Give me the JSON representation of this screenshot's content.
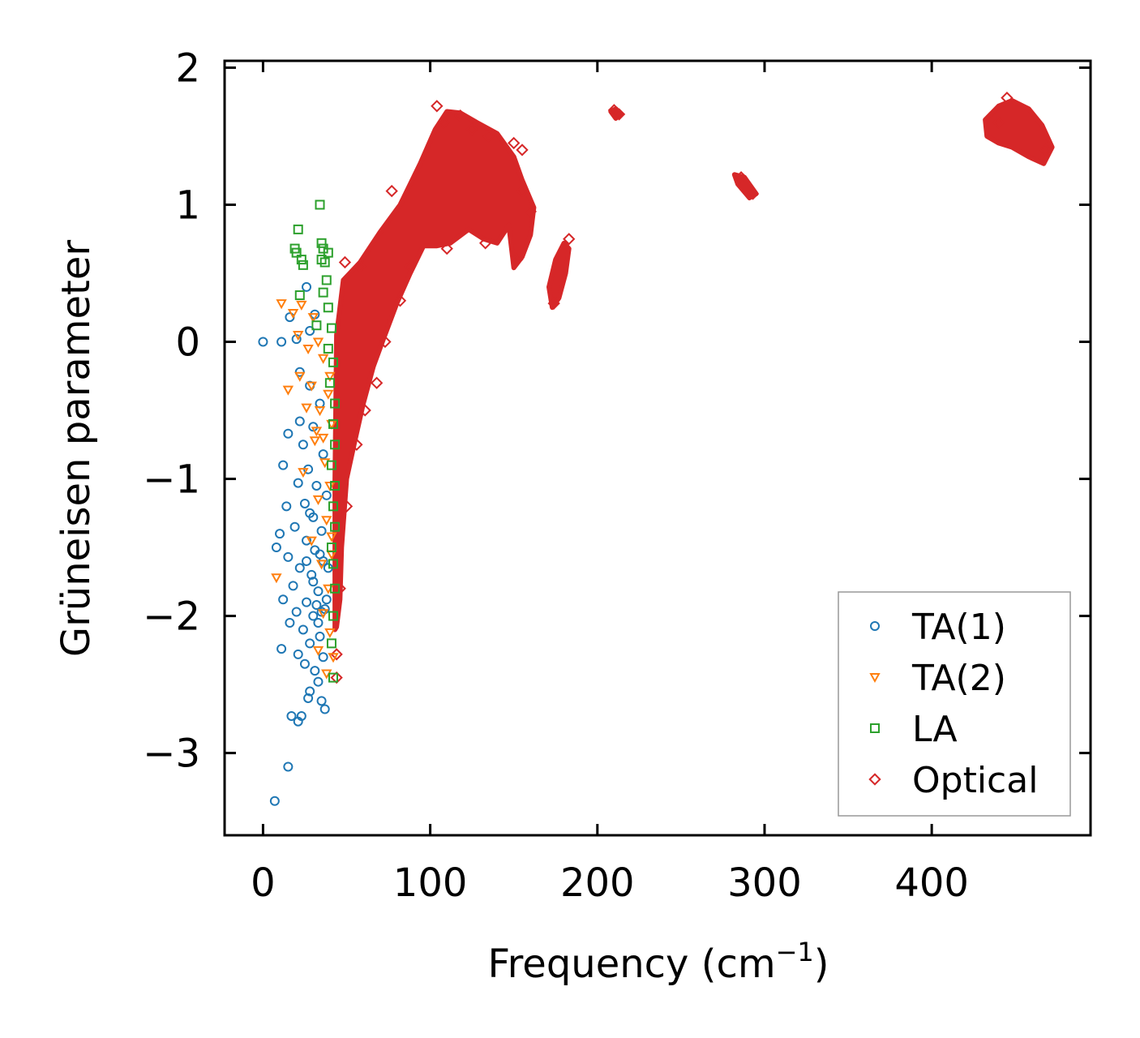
{
  "chart_data": {
    "type": "scatter",
    "title": "",
    "xlabel": "Frequency (cm",
    "xlabel_superscript": "−1",
    "xlabel_suffix": ")",
    "ylabel": "Grüneisen parameter",
    "xlim": [
      -23,
      495
    ],
    "ylim": [
      -3.6,
      2.05
    ],
    "x_ticks": [
      0,
      100,
      200,
      300,
      400
    ],
    "x_tick_labels": [
      "0",
      "100",
      "200",
      "300",
      "400"
    ],
    "y_ticks": [
      2,
      1,
      0,
      -1,
      -2,
      -3
    ],
    "y_tick_labels": [
      "2",
      "1",
      "0",
      "−1",
      "−2",
      "−3"
    ],
    "grid": false,
    "legend_position": "bottom-right",
    "series": [
      {
        "name": "TA(1)",
        "marker": "circle",
        "color": "#1f77b4",
        "points": [
          [
            0,
            0
          ],
          [
            11,
            0
          ],
          [
            16,
            0.18
          ],
          [
            26,
            0.4
          ],
          [
            20,
            0.02
          ],
          [
            28,
            0.08
          ],
          [
            31,
            0.2
          ],
          [
            22,
            -0.22
          ],
          [
            28,
            -0.32
          ],
          [
            34,
            -0.45
          ],
          [
            22,
            -0.58
          ],
          [
            30,
            -0.62
          ],
          [
            15,
            -0.67
          ],
          [
            24,
            -0.75
          ],
          [
            36,
            -0.82
          ],
          [
            27,
            -0.93
          ],
          [
            12,
            -0.9
          ],
          [
            21,
            -1.03
          ],
          [
            32,
            -1.05
          ],
          [
            38,
            -1.12
          ],
          [
            25,
            -1.18
          ],
          [
            14,
            -1.2
          ],
          [
            30,
            -1.28
          ],
          [
            19,
            -1.35
          ],
          [
            35,
            -1.38
          ],
          [
            10,
            -1.4
          ],
          [
            26,
            -1.45
          ],
          [
            8,
            -1.5
          ],
          [
            31,
            -1.52
          ],
          [
            15,
            -1.57
          ],
          [
            36,
            -1.6
          ],
          [
            22,
            -1.65
          ],
          [
            29,
            -1.7
          ],
          [
            18,
            -1.78
          ],
          [
            33,
            -1.82
          ],
          [
            12,
            -1.88
          ],
          [
            26,
            -1.9
          ],
          [
            37,
            -1.95
          ],
          [
            20,
            -1.97
          ],
          [
            30,
            -2.0
          ],
          [
            16,
            -2.05
          ],
          [
            24,
            -2.1
          ],
          [
            34,
            -2.15
          ],
          [
            28,
            -2.2
          ],
          [
            11,
            -2.24
          ],
          [
            21,
            -2.28
          ],
          [
            36,
            -2.3
          ],
          [
            25,
            -2.35
          ],
          [
            31,
            -2.4
          ],
          [
            33,
            -2.48
          ],
          [
            28,
            -2.55
          ],
          [
            35,
            -2.62
          ],
          [
            27,
            -2.6
          ],
          [
            37,
            -2.68
          ],
          [
            17,
            -2.73
          ],
          [
            23,
            -2.73
          ],
          [
            21,
            -2.77
          ],
          [
            15,
            -3.1
          ],
          [
            7,
            -3.35
          ],
          [
            32,
            -1.92
          ],
          [
            35,
            -1.97
          ],
          [
            38,
            -1.88
          ],
          [
            30,
            -1.75
          ],
          [
            34,
            -1.55
          ],
          [
            28,
            -1.25
          ],
          [
            39,
            -1.65
          ],
          [
            33,
            -2.05
          ],
          [
            26,
            -1.6
          ]
        ]
      },
      {
        "name": "TA(2)",
        "marker": "triangle-down",
        "color": "#ff7f0e",
        "points": [
          [
            11,
            0.28
          ],
          [
            18,
            0.21
          ],
          [
            23,
            0.27
          ],
          [
            30,
            0.18
          ],
          [
            21,
            0.05
          ],
          [
            33,
            0.0
          ],
          [
            27,
            -0.05
          ],
          [
            36,
            -0.12
          ],
          [
            22,
            -0.25
          ],
          [
            29,
            -0.32
          ],
          [
            39,
            -0.38
          ],
          [
            15,
            -0.35
          ],
          [
            34,
            -0.5
          ],
          [
            26,
            -0.48
          ],
          [
            41,
            -0.6
          ],
          [
            31,
            -0.72
          ],
          [
            37,
            -0.88
          ],
          [
            24,
            -0.95
          ],
          [
            40,
            -1.05
          ],
          [
            33,
            -1.15
          ],
          [
            38,
            -1.3
          ],
          [
            29,
            -1.45
          ],
          [
            41,
            -1.55
          ],
          [
            35,
            -1.62
          ],
          [
            8,
            -1.72
          ],
          [
            39,
            -1.8
          ],
          [
            36,
            -1.98
          ],
          [
            40,
            -2.12
          ],
          [
            33,
            -2.25
          ],
          [
            42,
            -2.3
          ],
          [
            38,
            -2.42
          ],
          [
            41,
            -1.42
          ],
          [
            36,
            -0.7
          ],
          [
            40,
            -0.25
          ],
          [
            32,
            -0.65
          ]
        ]
      },
      {
        "name": "LA",
        "marker": "square",
        "color": "#2ca02c",
        "points": [
          [
            34,
            1.0
          ],
          [
            21,
            0.82
          ],
          [
            19,
            0.68
          ],
          [
            20,
            0.65
          ],
          [
            35,
            0.72
          ],
          [
            36,
            0.68
          ],
          [
            39,
            0.65
          ],
          [
            23,
            0.6
          ],
          [
            24,
            0.56
          ],
          [
            35,
            0.6
          ],
          [
            37,
            0.58
          ],
          [
            38,
            0.45
          ],
          [
            36,
            0.36
          ],
          [
            22,
            0.34
          ],
          [
            39,
            0.25
          ],
          [
            41,
            0.1
          ],
          [
            32,
            0.12
          ],
          [
            39,
            -0.05
          ],
          [
            42,
            -0.15
          ],
          [
            40,
            -0.3
          ],
          [
            43,
            -0.45
          ],
          [
            42,
            -0.6
          ],
          [
            43,
            -0.75
          ],
          [
            41,
            -0.9
          ],
          [
            43,
            -1.05
          ],
          [
            42,
            -1.2
          ],
          [
            43,
            -1.35
          ],
          [
            41,
            -1.5
          ],
          [
            42,
            -1.62
          ],
          [
            43,
            -1.8
          ],
          [
            42,
            -2.0
          ],
          [
            41,
            -2.2
          ],
          [
            42,
            -2.45
          ]
        ]
      },
      {
        "name": "Optical",
        "marker": "diamond",
        "color": "#d62728",
        "points": [
          [
            49,
            0.58
          ],
          [
            58,
            0.55
          ],
          [
            77,
            1.1
          ],
          [
            88,
            0.55
          ],
          [
            104,
            1.72
          ],
          [
            108,
            1.6
          ],
          [
            118,
            1.65
          ],
          [
            125,
            1.55
          ],
          [
            135,
            1.5
          ],
          [
            150,
            1.45
          ],
          [
            155,
            1.4
          ],
          [
            210,
            1.69
          ],
          [
            213,
            1.66
          ],
          [
            155,
            1.1
          ],
          [
            160,
            0.95
          ],
          [
            152,
            0.6
          ],
          [
            133,
            0.72
          ],
          [
            110,
            0.68
          ],
          [
            82,
            0.3
          ],
          [
            73,
            0.0
          ],
          [
            68,
            -0.3
          ],
          [
            61,
            -0.5
          ],
          [
            56,
            -0.75
          ],
          [
            50,
            -1.2
          ],
          [
            46,
            -1.8
          ],
          [
            44,
            -2.28
          ],
          [
            44,
            -2.45
          ],
          [
            183,
            0.75
          ],
          [
            174,
            0.28
          ],
          [
            286,
            1.2
          ],
          [
            293,
            1.08
          ],
          [
            445,
            1.78
          ],
          [
            468,
            1.4
          ],
          [
            440,
            1.6
          ]
        ],
        "regions": [
          [
            [
              43,
              -2.1
            ],
            [
              43,
              -1.0
            ],
            [
              44,
              0.05
            ],
            [
              48,
              0.45
            ],
            [
              58,
              0.58
            ],
            [
              70,
              0.8
            ],
            [
              82,
              1.0
            ],
            [
              94,
              1.3
            ],
            [
              103,
              1.55
            ],
            [
              110,
              1.68
            ],
            [
              118,
              1.67
            ],
            [
              128,
              1.6
            ],
            [
              140,
              1.52
            ],
            [
              150,
              1.35
            ],
            [
              155,
              1.18
            ],
            [
              162,
              0.98
            ],
            [
              160,
              0.78
            ],
            [
              155,
              0.62
            ],
            [
              150,
              0.54
            ],
            [
              147,
              0.85
            ],
            [
              140,
              0.72
            ],
            [
              132,
              0.75
            ],
            [
              123,
              0.82
            ],
            [
              112,
              0.72
            ],
            [
              104,
              0.7
            ],
            [
              96,
              0.7
            ],
            [
              88,
              0.5
            ],
            [
              80,
              0.28
            ],
            [
              72,
              0.02
            ],
            [
              66,
              -0.18
            ],
            [
              60,
              -0.45
            ],
            [
              55,
              -0.72
            ],
            [
              50,
              -1.0
            ],
            [
              47,
              -1.5
            ],
            [
              46,
              -1.88
            ],
            [
              44,
              -2.08
            ]
          ],
          [
            [
              171,
              0.4
            ],
            [
              175,
              0.6
            ],
            [
              180,
              0.72
            ],
            [
              183,
              0.68
            ],
            [
              181,
              0.5
            ],
            [
              177,
              0.32
            ],
            [
              173,
              0.25
            ]
          ],
          [
            [
              208,
              1.68
            ],
            [
              211,
              1.7
            ],
            [
              214,
              1.66
            ],
            [
              211,
              1.63
            ]
          ],
          [
            [
              282,
              1.22
            ],
            [
              288,
              1.2
            ],
            [
              295,
              1.08
            ],
            [
              291,
              1.05
            ],
            [
              284,
              1.15
            ]
          ],
          [
            [
              432,
              1.62
            ],
            [
              440,
              1.72
            ],
            [
              448,
              1.76
            ],
            [
              458,
              1.7
            ],
            [
              466,
              1.58
            ],
            [
              472,
              1.42
            ],
            [
              467,
              1.3
            ],
            [
              458,
              1.35
            ],
            [
              448,
              1.42
            ],
            [
              440,
              1.45
            ],
            [
              433,
              1.5
            ]
          ]
        ]
      }
    ]
  }
}
